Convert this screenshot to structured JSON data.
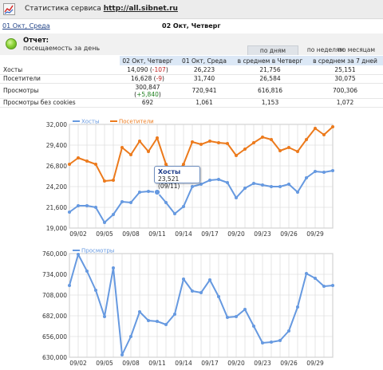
{
  "header": {
    "title_prefix": "Статистика сервиса",
    "site_link": "http://all.sibnet.ru"
  },
  "nav": {
    "prev_date": "01 Окт, Среда",
    "current_date": "02 Окт, Четверг"
  },
  "report": {
    "title": "Отчет:",
    "subtitle": "посещаемость за день",
    "tabs": [
      {
        "label": "по дням",
        "active": true
      },
      {
        "label": "по неделям",
        "active": false
      },
      {
        "label": "по месяцам",
        "active": false
      }
    ]
  },
  "table": {
    "columns": [
      "",
      "02 Окт, Четверг",
      "01 Окт, Среда",
      "в среднем в Четверг",
      "в среднем за 7 дней"
    ],
    "rows": [
      {
        "label": "Хосты",
        "today": "14,090",
        "delta": "-107",
        "delta_sign": "neg",
        "yesterday": "26,223",
        "avg_dow": "21,756",
        "avg_7": "25,151"
      },
      {
        "label": "Посетители",
        "today": "16,628",
        "delta": "-9",
        "delta_sign": "neg",
        "yesterday": "31,740",
        "avg_dow": "26,584",
        "avg_7": "30,075"
      },
      {
        "label": "Просмотры",
        "today": "300,847",
        "delta": "+5,840",
        "delta_sign": "pos",
        "yesterday": "720,941",
        "avg_dow": "616,816",
        "avg_7": "700,306"
      },
      {
        "label": "Просмотры без cookies",
        "today": "692",
        "delta": "",
        "delta_sign": "",
        "yesterday": "1,061",
        "avg_dow": "1,153",
        "avg_7": "1,072"
      }
    ]
  },
  "colors": {
    "hosts": "#6699e0",
    "visitors": "#ec7a1c",
    "views": "#6699e0",
    "grid": "#d6d6d6"
  },
  "tooltip": {
    "title": "Хосты",
    "value": "23,521 (09/11)"
  },
  "chart_data": [
    {
      "type": "line",
      "ylim": [
        19000,
        32000
      ],
      "yticks": [
        "19,000",
        "21,600",
        "24,200",
        "26,800",
        "29,400",
        "32,000"
      ],
      "ytick_values": [
        19000,
        21600,
        24200,
        26800,
        29400,
        32000
      ],
      "xtick_labels": [
        "09/02",
        "09/05",
        "09/08",
        "09/11",
        "09/14",
        "09/17",
        "09/20",
        "09/23",
        "09/26",
        "09/29"
      ],
      "xtick_days": [
        2,
        5,
        8,
        11,
        14,
        17,
        20,
        23,
        26,
        29
      ],
      "x_days": [
        1,
        2,
        3,
        4,
        5,
        6,
        7,
        8,
        9,
        10,
        11,
        12,
        13,
        14,
        15,
        16,
        17,
        18,
        19,
        20,
        21,
        22,
        23,
        24,
        25,
        26,
        27,
        28,
        29,
        30,
        31
      ],
      "series": [
        {
          "name": "Хосты",
          "color": "#6699e0",
          "values": [
            21000,
            21800,
            21800,
            21600,
            19700,
            20700,
            22300,
            22200,
            23500,
            23600,
            23500,
            22200,
            20800,
            21700,
            24200,
            24500,
            25000,
            25100,
            24700,
            22800,
            24000,
            24600,
            24400,
            24200,
            24200,
            24500,
            23500,
            25300,
            26100,
            26000,
            26200
          ]
        },
        {
          "name": "Посетители",
          "color": "#ec7a1c",
          "values": [
            27000,
            27800,
            27400,
            27000,
            24900,
            25000,
            29100,
            28200,
            29900,
            28600,
            30300,
            27000,
            25600,
            27000,
            29800,
            29500,
            29900,
            29700,
            29600,
            28100,
            28900,
            29700,
            30400,
            30100,
            28700,
            29100,
            28600,
            30100,
            31500,
            30700,
            31700
          ]
        }
      ]
    },
    {
      "type": "line",
      "ylim": [
        630000,
        760000
      ],
      "yticks": [
        "630,000",
        "656,000",
        "682,000",
        "708,000",
        "734,000",
        "760,000"
      ],
      "ytick_values": [
        630000,
        656000,
        682000,
        708000,
        734000,
        760000
      ],
      "xtick_labels": [
        "09/02",
        "09/05",
        "09/08",
        "09/11",
        "09/14",
        "09/17",
        "09/20",
        "09/23",
        "09/26",
        "09/29"
      ],
      "xtick_days": [
        2,
        5,
        8,
        11,
        14,
        17,
        20,
        23,
        26,
        29
      ],
      "x_days": [
        1,
        2,
        3,
        4,
        5,
        6,
        7,
        8,
        9,
        10,
        11,
        12,
        13,
        14,
        15,
        16,
        17,
        18,
        19,
        20,
        21,
        22,
        23,
        24,
        25,
        26,
        27,
        28,
        29,
        30,
        31
      ],
      "series": [
        {
          "name": "Просмотры",
          "color": "#6699e0",
          "values": [
            720000,
            759000,
            738000,
            714000,
            681000,
            742000,
            633000,
            656000,
            687000,
            676000,
            675000,
            671000,
            684000,
            728000,
            713000,
            711000,
            727000,
            706000,
            680000,
            681000,
            690000,
            669000,
            648000,
            649000,
            651000,
            663000,
            693000,
            735000,
            729000,
            719000,
            720000
          ]
        }
      ]
    }
  ]
}
